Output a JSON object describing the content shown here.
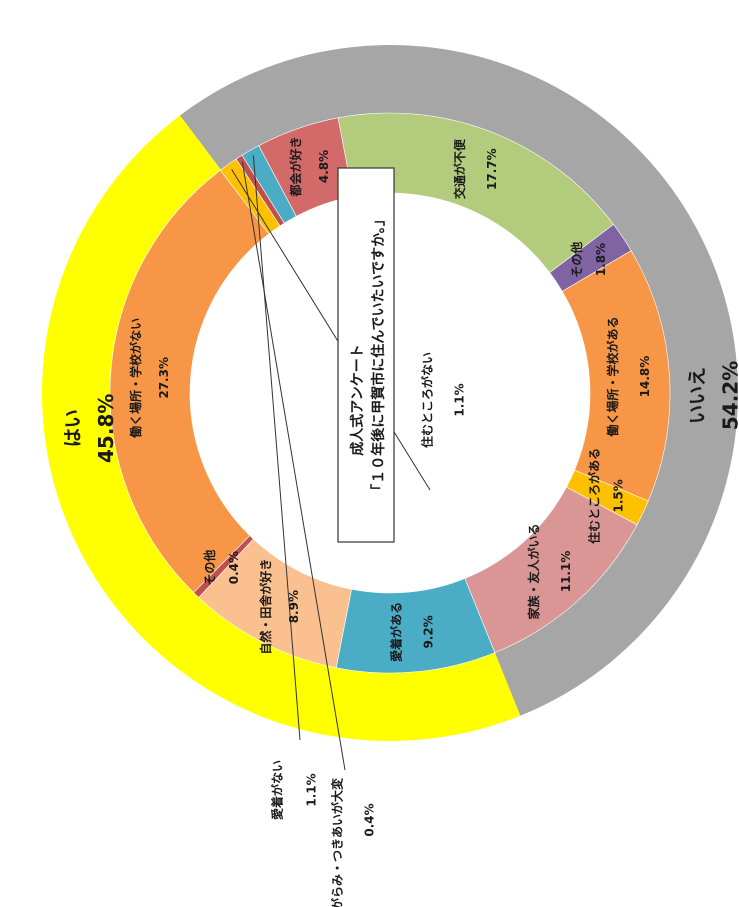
{
  "chart_data": {
    "type": "pie",
    "title": "成人式アンケート",
    "subtitle": "「１０年後に甲賀市に住んでいたいですか。」",
    "outer": [
      {
        "name": "はい",
        "value": 45.8,
        "label": "45.8%",
        "color": "#ffff00"
      },
      {
        "name": "いいえ",
        "value": 54.2,
        "label": "54.2%",
        "color": "#a6a6a6"
      }
    ],
    "inner": [
      {
        "name": "愛着がある",
        "value": 9.2,
        "label": "9.2%",
        "color": "#4bacc6"
      },
      {
        "name": "自然・田舎が好き",
        "value": 8.9,
        "label": "8.9%",
        "color": "#fac090"
      },
      {
        "name": "その他",
        "value": 0.4,
        "label": "0.4%",
        "color": "#c0504d"
      },
      {
        "name": "働く場所・学校がない",
        "value": 27.3,
        "label": "27.3%",
        "color": "#f79646"
      },
      {
        "name": "住むところがない",
        "value": 1.1,
        "label": "1.1%",
        "color": "#ffc000"
      },
      {
        "name": "しがらみ・つきあいが大変",
        "value": 0.4,
        "label": "0.4%",
        "color": "#c0504d"
      },
      {
        "name": "愛着がない",
        "value": 1.1,
        "label": "1.1%",
        "color": "#4bacc6"
      },
      {
        "name": "都会が好き",
        "value": 4.8,
        "label": "4.8%",
        "color": "#d26a6a"
      },
      {
        "name": "交通が不便",
        "value": 17.7,
        "label": "17.7%",
        "color": "#b3cb7c"
      },
      {
        "name": "その他",
        "value": 1.8,
        "label": "1.8%",
        "color": "#8064a2"
      },
      {
        "name": "働く場所・学校がある",
        "value": 14.8,
        "label": "14.8%",
        "color": "#f79646"
      },
      {
        "name": "住むところがある",
        "value": 1.5,
        "label": "1.5%",
        "color": "#ffc000"
      },
      {
        "name": "家族・友人がいる",
        "value": 11.1,
        "label": "11.1%",
        "color": "#d99694"
      }
    ]
  }
}
